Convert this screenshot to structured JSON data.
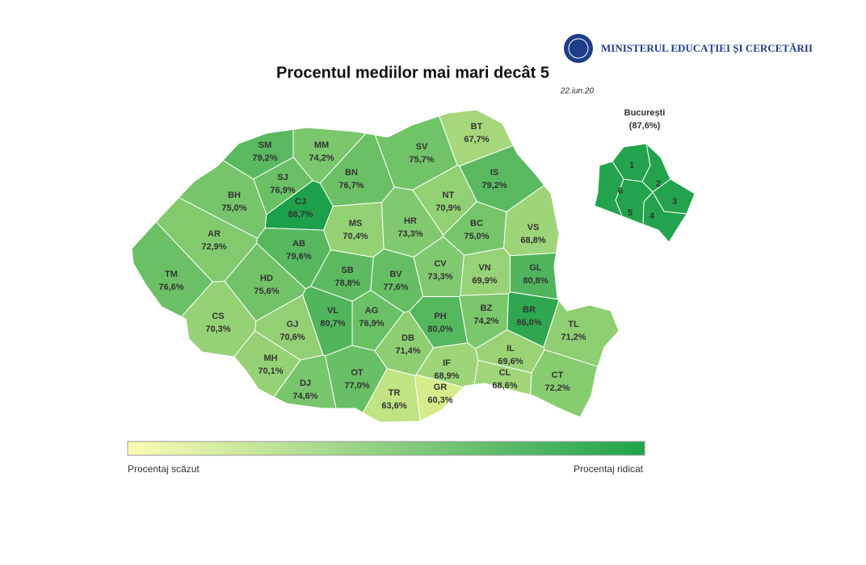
{
  "header": {
    "ministry": "MINISTERUL EDUCAȚIEI ȘI CERCETĂRII",
    "title": "Procentul mediilor mai mari decât 5",
    "date": "22.iun.20"
  },
  "counties": [
    {
      "code": "SM",
      "value": 79.2,
      "label": "79,2%"
    },
    {
      "code": "MM",
      "value": 74.2,
      "label": "74,2%"
    },
    {
      "code": "BT",
      "value": 67.7,
      "label": "67,7%"
    },
    {
      "code": "SV",
      "value": 75.7,
      "label": "75,7%"
    },
    {
      "code": "BN",
      "value": 76.7,
      "label": "76,7%"
    },
    {
      "code": "SJ",
      "value": 76.9,
      "label": "76,9%"
    },
    {
      "code": "IS",
      "value": 79.2,
      "label": "79,2%"
    },
    {
      "code": "CJ",
      "value": 88.7,
      "label": "88,7%"
    },
    {
      "code": "BH",
      "value": 75.0,
      "label": "75,0%"
    },
    {
      "code": "NT",
      "value": 70.9,
      "label": "70,9%"
    },
    {
      "code": "MS",
      "value": 70.4,
      "label": "70,4%"
    },
    {
      "code": "HR",
      "value": 73.3,
      "label": "73,3%"
    },
    {
      "code": "BC",
      "value": 75.0,
      "label": "75,0%"
    },
    {
      "code": "VS",
      "value": 68.8,
      "label": "68,8%"
    },
    {
      "code": "AR",
      "value": 72.9,
      "label": "72,9%"
    },
    {
      "code": "AB",
      "value": 79.6,
      "label": "79,6%"
    },
    {
      "code": "TM",
      "value": 76.6,
      "label": "76,6%"
    },
    {
      "code": "HD",
      "value": 75.6,
      "label": "75,6%"
    },
    {
      "code": "SB",
      "value": 78.8,
      "label": "78,8%"
    },
    {
      "code": "BV",
      "value": 77.6,
      "label": "77,6%"
    },
    {
      "code": "CV",
      "value": 73.3,
      "label": "73,3%"
    },
    {
      "code": "VN",
      "value": 69.9,
      "label": "69,9%"
    },
    {
      "code": "GL",
      "value": 80.8,
      "label": "80,8%"
    },
    {
      "code": "CS",
      "value": 70.3,
      "label": "70,3%"
    },
    {
      "code": "GJ",
      "value": 70.6,
      "label": "70,6%"
    },
    {
      "code": "VL",
      "value": 80.7,
      "label": "80,7%"
    },
    {
      "code": "AG",
      "value": 76.9,
      "label": "76,9%"
    },
    {
      "code": "PH",
      "value": 80.0,
      "label": "80,0%"
    },
    {
      "code": "BZ",
      "value": 74.2,
      "label": "74,2%"
    },
    {
      "code": "BR",
      "value": 86.0,
      "label": "86,0%"
    },
    {
      "code": "TL",
      "value": 71.2,
      "label": "71,2%"
    },
    {
      "code": "DB",
      "value": 71.4,
      "label": "71,4%"
    },
    {
      "code": "MH",
      "value": 70.1,
      "label": "70,1%"
    },
    {
      "code": "DJ",
      "value": 74.6,
      "label": "74,6%"
    },
    {
      "code": "OT",
      "value": 77.0,
      "label": "77,0%"
    },
    {
      "code": "IL",
      "value": 69.6,
      "label": "69,6%"
    },
    {
      "code": "TR",
      "value": 63.6,
      "label": "63,6%"
    },
    {
      "code": "GR",
      "value": 60.3,
      "label": "60,3%"
    },
    {
      "code": "IF",
      "value": 68.9,
      "label": "68,9%"
    },
    {
      "code": "CL",
      "value": 68.6,
      "label": "68,6%"
    },
    {
      "code": "CT",
      "value": 72.2,
      "label": "72,2%"
    }
  ],
  "bucharest": {
    "name": "București",
    "value": 87.6,
    "label": "(87,6%)",
    "sectors": [
      "1",
      "2",
      "3",
      "4",
      "5",
      "6"
    ]
  },
  "legend": {
    "low": "Procentaj scăzut",
    "high": "Procentaj ridicat"
  }
}
